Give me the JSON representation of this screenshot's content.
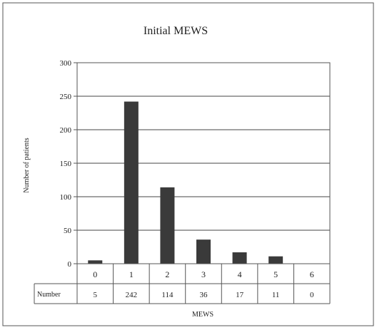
{
  "chart_data": {
    "type": "bar",
    "title": "Initial MEWS",
    "xlabel": "MEWS",
    "ylabel": "Number of patients",
    "categories": [
      "0",
      "1",
      "2",
      "3",
      "4",
      "5",
      "6"
    ],
    "values": [
      5,
      242,
      114,
      36,
      17,
      11,
      0
    ],
    "ylim": [
      0,
      300
    ],
    "yticks": [
      0,
      50,
      100,
      150,
      200,
      250,
      300
    ],
    "grid": true,
    "table_row_label": "Number",
    "colors": {
      "bar": "#3a3a3a",
      "grid": "#444444",
      "frame": "#555555"
    }
  }
}
